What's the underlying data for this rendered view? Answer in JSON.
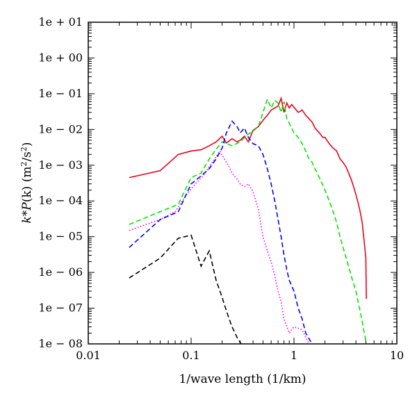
{
  "chart_data": {
    "type": "line",
    "title": "",
    "xlabel": "1/wave length (1/km)",
    "ylabel": {
      "prefix": "k",
      "mid": "*",
      "func": "P",
      "args": "(k)  (m",
      "sup1": "2",
      "slash": "/s",
      "sup2": "2",
      "close": ")"
    },
    "x_scale": "log",
    "y_scale": "log",
    "xlim": [
      0.01,
      10
    ],
    "ylim": [
      1e-08,
      10
    ],
    "x_ticks": [
      {
        "value": 0.01,
        "label": "0.01"
      },
      {
        "value": 0.1,
        "label": "0.1"
      },
      {
        "value": 1,
        "label": "1"
      },
      {
        "value": 10,
        "label": "10"
      }
    ],
    "y_ticks": [
      {
        "value": 10,
        "label": "1e + 01"
      },
      {
        "value": 1,
        "label": "1e + 00"
      },
      {
        "value": 0.1,
        "label": "1e − 01"
      },
      {
        "value": 0.01,
        "label": "1e − 02"
      },
      {
        "value": 0.001,
        "label": "1e − 03"
      },
      {
        "value": 0.0001,
        "label": "1e − 04"
      },
      {
        "value": 1e-05,
        "label": "1e − 05"
      },
      {
        "value": 1e-06,
        "label": "1e − 06"
      },
      {
        "value": 1e-07,
        "label": "1e − 07"
      },
      {
        "value": 1e-08,
        "label": "1e − 08"
      }
    ],
    "grid": false,
    "legend": "none",
    "series": [
      {
        "color": "#e8001c",
        "dash": "solid",
        "points": [
          [
            0.025,
            0.00045
          ],
          [
            0.05,
            0.0007
          ],
          [
            0.075,
            0.002
          ],
          [
            0.1,
            0.0025
          ],
          [
            0.125,
            0.0027
          ],
          [
            0.15,
            0.0035
          ],
          [
            0.175,
            0.0045
          ],
          [
            0.2,
            0.0065
          ],
          [
            0.22,
            0.0042
          ],
          [
            0.25,
            0.0055
          ],
          [
            0.28,
            0.0045
          ],
          [
            0.3,
            0.005
          ],
          [
            0.33,
            0.0065
          ],
          [
            0.36,
            0.0045
          ],
          [
            0.4,
            0.0095
          ],
          [
            0.45,
            0.012
          ],
          [
            0.5,
            0.018
          ],
          [
            0.55,
            0.025
          ],
          [
            0.6,
            0.035
          ],
          [
            0.65,
            0.04
          ],
          [
            0.7,
            0.045
          ],
          [
            0.75,
            0.075
          ],
          [
            0.8,
            0.03
          ],
          [
            0.85,
            0.055
          ],
          [
            0.9,
            0.04
          ],
          [
            0.95,
            0.05
          ],
          [
            1.0,
            0.042
          ],
          [
            1.1,
            0.03
          ],
          [
            1.2,
            0.035
          ],
          [
            1.3,
            0.025
          ],
          [
            1.4,
            0.02
          ],
          [
            1.5,
            0.016
          ],
          [
            1.6,
            0.011
          ],
          [
            1.7,
            0.009
          ],
          [
            1.8,
            0.0075
          ],
          [
            1.9,
            0.006
          ],
          [
            2.0,
            0.006
          ],
          [
            2.2,
            0.004
          ],
          [
            2.4,
            0.003
          ],
          [
            2.6,
            0.0025
          ],
          [
            2.8,
            0.0015
          ],
          [
            3.0,
            0.0012
          ],
          [
            3.2,
            0.0009
          ],
          [
            3.4,
            0.0006
          ],
          [
            3.6,
            0.0004
          ],
          [
            3.8,
            0.00025
          ],
          [
            4.0,
            0.00015
          ],
          [
            4.2,
            9e-05
          ],
          [
            4.4,
            5e-05
          ],
          [
            4.6,
            2.5e-05
          ],
          [
            4.8,
            8e-06
          ],
          [
            5.0,
            2.5e-06
          ],
          [
            5.05,
            1.8e-07
          ]
        ]
      },
      {
        "color": "#00e600",
        "dash": "dashed",
        "points": [
          [
            0.025,
            2.2e-05
          ],
          [
            0.05,
            5e-05
          ],
          [
            0.075,
            8e-05
          ],
          [
            0.1,
            0.00045
          ],
          [
            0.125,
            0.0006
          ],
          [
            0.15,
            0.0015
          ],
          [
            0.175,
            0.0028
          ],
          [
            0.2,
            0.0045
          ],
          [
            0.25,
            0.0035
          ],
          [
            0.3,
            0.0045
          ],
          [
            0.35,
            0.007
          ],
          [
            0.4,
            0.009
          ],
          [
            0.45,
            0.012
          ],
          [
            0.5,
            0.03
          ],
          [
            0.55,
            0.07
          ],
          [
            0.6,
            0.04
          ],
          [
            0.65,
            0.065
          ],
          [
            0.7,
            0.055
          ],
          [
            0.75,
            0.03
          ],
          [
            0.8,
            0.06
          ],
          [
            0.85,
            0.02
          ],
          [
            0.9,
            0.015
          ],
          [
            1.0,
            0.008
          ],
          [
            1.1,
            0.006
          ],
          [
            1.2,
            0.004
          ],
          [
            1.3,
            0.0025
          ],
          [
            1.4,
            0.0015
          ],
          [
            1.5,
            0.0012
          ],
          [
            1.6,
            0.0008
          ],
          [
            1.8,
            0.0004
          ],
          [
            2.0,
            0.0002
          ],
          [
            2.2,
            0.0001
          ],
          [
            2.4,
            5e-05
          ],
          [
            2.6,
            2.5e-05
          ],
          [
            2.8,
            1e-05
          ],
          [
            3.0,
            5e-06
          ],
          [
            3.3,
            2e-06
          ],
          [
            3.6,
            8e-07
          ],
          [
            4.0,
            3e-07
          ],
          [
            4.5,
            6e-08
          ],
          [
            5.0,
            1.2e-08
          ]
        ]
      },
      {
        "color": "#ff00ff",
        "dash": "dotted",
        "points": [
          [
            0.025,
            1.5e-05
          ],
          [
            0.05,
            3e-05
          ],
          [
            0.07,
            5e-05
          ],
          [
            0.09,
            0.00015
          ],
          [
            0.11,
            0.0003
          ],
          [
            0.13,
            0.0005
          ],
          [
            0.15,
            0.0009
          ],
          [
            0.17,
            0.0015
          ],
          [
            0.19,
            0.0025
          ],
          [
            0.21,
            0.0015
          ],
          [
            0.23,
            0.001
          ],
          [
            0.25,
            0.0006
          ],
          [
            0.28,
            0.0004
          ],
          [
            0.3,
            0.0003
          ],
          [
            0.33,
            0.00025
          ],
          [
            0.36,
            0.0003
          ],
          [
            0.4,
            0.00018
          ],
          [
            0.45,
            6e-05
          ],
          [
            0.5,
            1e-05
          ],
          [
            0.55,
            4e-06
          ],
          [
            0.6,
            2e-06
          ],
          [
            0.65,
            8e-07
          ],
          [
            0.7,
            3e-07
          ],
          [
            0.75,
            1.5e-07
          ],
          [
            0.8,
            5e-08
          ],
          [
            0.9,
            2e-08
          ],
          [
            1.0,
            3e-08
          ],
          [
            1.2,
            2.5e-08
          ],
          [
            1.4,
            1e-08
          ],
          [
            1.6,
            5e-09
          ]
        ]
      },
      {
        "color": "#0000ff",
        "dash": "dashed",
        "points": [
          [
            0.025,
            5e-06
          ],
          [
            0.05,
            3e-05
          ],
          [
            0.075,
            5e-05
          ],
          [
            0.1,
            0.0003
          ],
          [
            0.125,
            0.0005
          ],
          [
            0.15,
            0.0008
          ],
          [
            0.175,
            0.0015
          ],
          [
            0.2,
            0.003
          ],
          [
            0.22,
            0.008
          ],
          [
            0.25,
            0.017
          ],
          [
            0.28,
            0.012
          ],
          [
            0.3,
            0.008
          ],
          [
            0.33,
            0.011
          ],
          [
            0.36,
            0.006
          ],
          [
            0.4,
            0.004
          ],
          [
            0.45,
            0.0035
          ],
          [
            0.5,
            0.002
          ],
          [
            0.55,
            0.0008
          ],
          [
            0.6,
            0.0003
          ],
          [
            0.65,
            0.0001
          ],
          [
            0.7,
            3e-05
          ],
          [
            0.75,
            1e-05
          ],
          [
            0.8,
            3e-06
          ],
          [
            0.85,
            1.2e-06
          ],
          [
            0.9,
            6e-07
          ],
          [
            1.0,
            3e-07
          ],
          [
            1.1,
            1e-07
          ],
          [
            1.2,
            5e-08
          ],
          [
            1.3,
            2e-08
          ],
          [
            1.5,
            1e-08
          ],
          [
            1.7,
            7e-09
          ]
        ]
      },
      {
        "color": "#000000",
        "dash": "dashed",
        "points": [
          [
            0.025,
            7e-07
          ],
          [
            0.05,
            2.5e-06
          ],
          [
            0.075,
            9e-06
          ],
          [
            0.1,
            1.1e-05
          ],
          [
            0.125,
            1.5e-06
          ],
          [
            0.15,
            4e-06
          ],
          [
            0.175,
            6e-07
          ],
          [
            0.2,
            2e-07
          ],
          [
            0.225,
            7e-08
          ],
          [
            0.25,
            3e-08
          ],
          [
            0.28,
            1.5e-08
          ],
          [
            0.32,
            8e-09
          ],
          [
            0.35,
            6e-09
          ],
          [
            0.4,
            5e-09
          ]
        ]
      }
    ]
  }
}
